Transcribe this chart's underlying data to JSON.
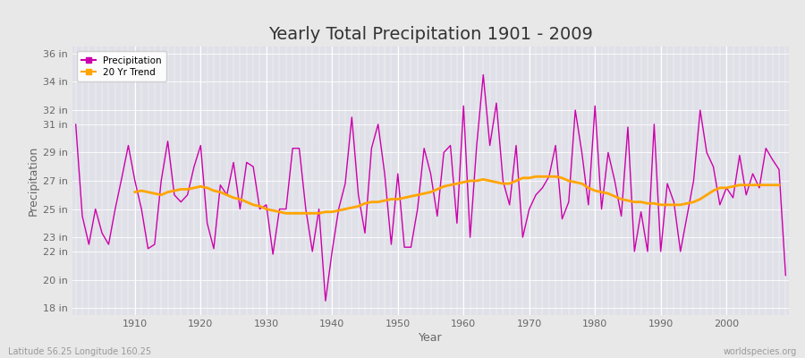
{
  "title": "Yearly Total Precipitation 1901 - 2009",
  "xlabel": "Year",
  "ylabel": "Precipitation",
  "bottom_left_label": "Latitude 56.25 Longitude 160.25",
  "bottom_right_label": "worldspecies.org",
  "precip_color": "#cc00aa",
  "trend_color": "#ffa500",
  "fig_bg_color": "#e8e8e8",
  "plot_bg_color": "#e0e0e8",
  "ylim": [
    17.5,
    36.5
  ],
  "yticks": [
    18,
    20,
    22,
    23,
    25,
    27,
    29,
    31,
    32,
    34,
    36
  ],
  "ytick_labels": [
    "18 in",
    "20 in",
    "22 in",
    "23 in",
    "25 in",
    "27 in",
    "29 in",
    "31 in",
    "32 in",
    "34 in",
    "36 in"
  ],
  "years": [
    1901,
    1902,
    1903,
    1904,
    1905,
    1906,
    1907,
    1908,
    1909,
    1910,
    1911,
    1912,
    1913,
    1914,
    1915,
    1916,
    1917,
    1918,
    1919,
    1920,
    1921,
    1922,
    1923,
    1924,
    1925,
    1926,
    1927,
    1928,
    1929,
    1930,
    1931,
    1932,
    1933,
    1934,
    1935,
    1936,
    1937,
    1938,
    1939,
    1940,
    1941,
    1942,
    1943,
    1944,
    1945,
    1946,
    1947,
    1948,
    1949,
    1950,
    1951,
    1952,
    1953,
    1954,
    1955,
    1956,
    1957,
    1958,
    1959,
    1960,
    1961,
    1962,
    1963,
    1964,
    1965,
    1966,
    1967,
    1968,
    1969,
    1970,
    1971,
    1972,
    1973,
    1974,
    1975,
    1976,
    1977,
    1978,
    1979,
    1980,
    1981,
    1982,
    1983,
    1984,
    1985,
    1986,
    1987,
    1988,
    1989,
    1990,
    1991,
    1992,
    1993,
    1994,
    1995,
    1996,
    1997,
    1998,
    1999,
    2000,
    2001,
    2002,
    2003,
    2004,
    2005,
    2006,
    2007,
    2008,
    2009
  ],
  "precip": [
    31.0,
    24.5,
    22.5,
    25.0,
    23.3,
    22.5,
    25.0,
    27.2,
    29.5,
    27.0,
    25.0,
    22.2,
    22.5,
    27.0,
    29.8,
    26.0,
    25.5,
    26.0,
    28.0,
    29.5,
    24.0,
    22.2,
    26.7,
    26.0,
    28.3,
    25.0,
    28.3,
    28.0,
    25.0,
    25.3,
    21.8,
    25.0,
    25.0,
    29.3,
    29.3,
    25.0,
    22.0,
    25.0,
    18.5,
    22.0,
    25.0,
    26.8,
    31.5,
    26.0,
    23.3,
    29.3,
    31.0,
    27.5,
    22.5,
    27.5,
    22.3,
    22.3,
    25.0,
    29.3,
    27.5,
    24.5,
    29.0,
    29.5,
    24.0,
    32.3,
    23.0,
    29.5,
    34.5,
    29.5,
    32.5,
    27.0,
    25.3,
    29.5,
    23.0,
    25.0,
    26.0,
    26.5,
    27.3,
    29.5,
    24.3,
    25.5,
    32.0,
    29.0,
    25.3,
    32.3,
    25.0,
    29.0,
    27.0,
    24.5,
    30.8,
    22.0,
    24.8,
    22.0,
    31.0,
    22.0,
    26.8,
    25.5,
    22.0,
    24.5,
    27.0,
    32.0,
    29.0,
    28.0,
    25.3,
    26.5,
    25.8,
    28.8,
    26.0,
    27.5,
    26.5,
    29.3,
    28.5,
    27.8,
    20.3
  ],
  "trend": [
    null,
    null,
    null,
    null,
    null,
    null,
    null,
    null,
    null,
    26.2,
    26.3,
    26.2,
    26.1,
    26.0,
    26.2,
    26.3,
    26.4,
    26.4,
    26.5,
    26.6,
    26.5,
    26.3,
    26.2,
    26.0,
    25.8,
    25.7,
    25.5,
    25.3,
    25.2,
    25.0,
    24.9,
    24.8,
    24.7,
    24.7,
    24.7,
    24.7,
    24.7,
    24.7,
    24.8,
    24.8,
    24.9,
    25.0,
    25.1,
    25.2,
    25.4,
    25.5,
    25.5,
    25.6,
    25.7,
    25.7,
    25.8,
    25.9,
    26.0,
    26.1,
    26.2,
    26.4,
    26.6,
    26.7,
    26.8,
    26.9,
    27.0,
    27.0,
    27.1,
    27.0,
    26.9,
    26.8,
    26.8,
    27.0,
    27.2,
    27.2,
    27.3,
    27.3,
    27.3,
    27.3,
    27.2,
    27.0,
    26.9,
    26.8,
    26.5,
    26.3,
    26.2,
    26.1,
    25.9,
    25.7,
    25.6,
    25.5,
    25.5,
    25.4,
    25.4,
    25.3,
    25.3,
    25.3,
    25.3,
    25.4,
    25.5,
    25.7,
    26.0,
    26.3,
    26.5,
    26.5,
    26.6,
    26.7,
    26.7,
    26.7,
    26.7,
    26.7,
    26.7,
    26.7,
    null
  ],
  "title_fontsize": 14,
  "label_fontsize": 9,
  "tick_fontsize": 8
}
